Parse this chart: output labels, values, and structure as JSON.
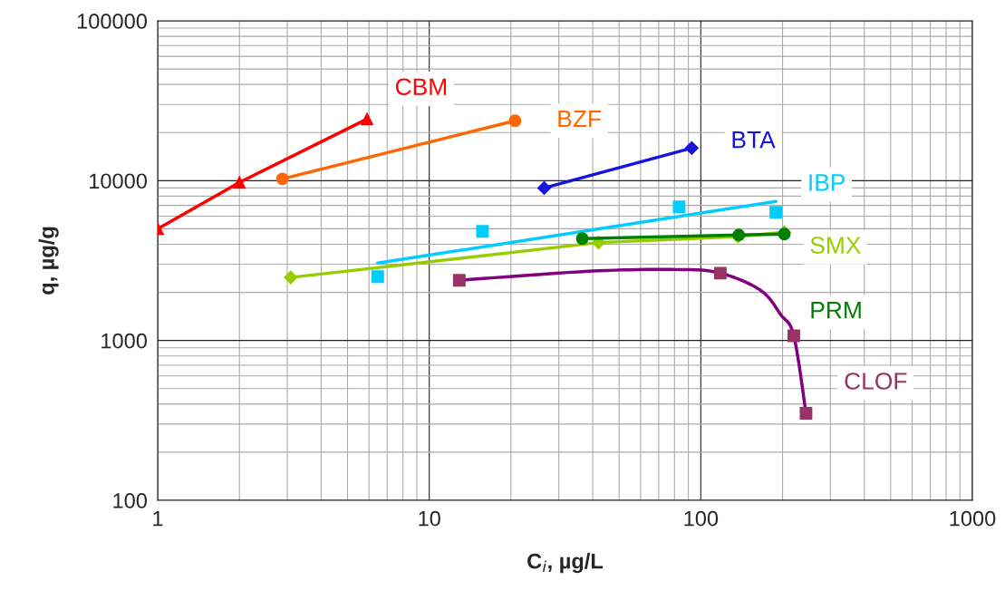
{
  "chart_data": {
    "type": "line",
    "xlabel": "C$_{i}$, µg/L",
    "ylabel": "q, µg/g",
    "log": "xy",
    "grid": true,
    "legend": false,
    "xlim": [
      1,
      1000
    ],
    "xticks": [
      1,
      10,
      100,
      1000
    ],
    "ylim": [
      100,
      100000
    ],
    "yticks": [
      100,
      1000,
      10000,
      100000
    ],
    "series": [
      {
        "name": "CBM",
        "marker": "triangle",
        "color": "#ff0000",
        "x": [
          1,
          2.0,
          5.9
        ],
        "values": [
          5000,
          9750,
          24300
        ]
      },
      {
        "name": "BZF",
        "marker": "circle",
        "color": "#ff6600",
        "x": [
          2.88,
          20.7
        ],
        "values": [
          10260,
          23700
        ]
      },
      {
        "name": "BTA",
        "marker": "diamond",
        "color": "#1414dc",
        "x": [
          26.5,
          92.6
        ],
        "values": [
          9000,
          16000
        ]
      },
      {
        "name": "IBP",
        "type": "scatter",
        "marker": "square",
        "color": "#00ccff",
        "x": [
          6.46,
          15.7,
          83.2,
          189
        ],
        "values": [
          2510,
          4820,
          6850,
          6340
        ]
      },
      {
        "type": "line",
        "marker": "none",
        "color": "#00ccff",
        "x": [
          6.46,
          189
        ],
        "values": [
          3050,
          7410
        ]
      },
      {
        "name": "SMX",
        "marker": "diamond",
        "color": "#99cc00",
        "x": [
          3.09,
          42,
          137,
          203
        ],
        "values": [
          2480,
          4100,
          4470,
          4760
        ]
      },
      {
        "name": "PRM",
        "marker": "circle",
        "color": "#008000",
        "x": [
          36.6,
          138,
          203
        ],
        "values": [
          4340,
          4570,
          4630
        ]
      },
      {
        "name": "CLOF",
        "type": "scatter",
        "marker": "square",
        "color": "#993366",
        "x": [
          12.9,
          118,
          220,
          244
        ],
        "values": [
          2380,
          2640,
          1070,
          350
        ]
      },
      {
        "type": "line",
        "marker": "none",
        "color": "#800080",
        "x": [
          12.9,
          38.6,
          81.5,
          118,
          166,
          197,
          220,
          244
        ],
        "values": [
          2380,
          2710,
          2780,
          2640,
          2060,
          1450,
          1070,
          350
        ]
      }
    ]
  }
}
